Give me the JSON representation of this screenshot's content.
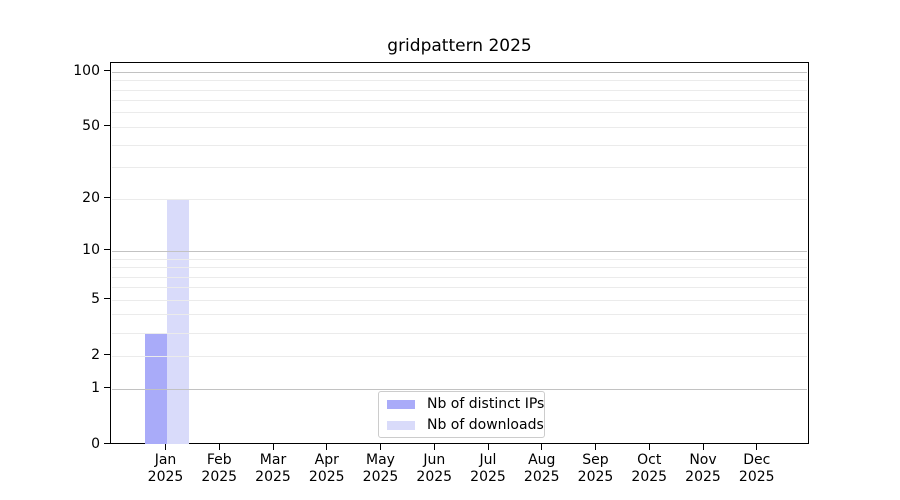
{
  "title": "gridpattern 2025",
  "chart_data": {
    "type": "bar",
    "title": "gridpattern 2025",
    "x_tick_labels": [
      {
        "month": "Jan",
        "year": "2025"
      },
      {
        "month": "Feb",
        "year": "2025"
      },
      {
        "month": "Mar",
        "year": "2025"
      },
      {
        "month": "Apr",
        "year": "2025"
      },
      {
        "month": "May",
        "year": "2025"
      },
      {
        "month": "Jun",
        "year": "2025"
      },
      {
        "month": "Jul",
        "year": "2025"
      },
      {
        "month": "Aug",
        "year": "2025"
      },
      {
        "month": "Sep",
        "year": "2025"
      },
      {
        "month": "Oct",
        "year": "2025"
      },
      {
        "month": "Nov",
        "year": "2025"
      },
      {
        "month": "Dec",
        "year": "2025"
      }
    ],
    "series": [
      {
        "name": "Nb of distinct IPs",
        "color": "#a9abf9",
        "values": [
          3,
          0,
          0,
          0,
          0,
          0,
          0,
          0,
          0,
          0,
          0,
          0
        ]
      },
      {
        "name": "Nb of downloads",
        "color": "#d9dbfa",
        "values": [
          20,
          0,
          0,
          0,
          0,
          0,
          0,
          0,
          0,
          0,
          0,
          0
        ]
      }
    ],
    "y_axis": {
      "scale": "log1p",
      "tick_values": [
        0,
        1,
        2,
        5,
        10,
        20,
        50,
        100
      ],
      "tick_labels": [
        "0",
        "1",
        "2",
        "5",
        "10",
        "20",
        "50",
        "100"
      ],
      "major_grid_values": [
        1,
        10,
        100
      ],
      "minor_grid_values": [
        2,
        3,
        4,
        5,
        6,
        7,
        8,
        9,
        20,
        30,
        40,
        50,
        60,
        70,
        80,
        90
      ],
      "ylim": [
        0,
        112
      ]
    },
    "legend": {
      "position": "bottom-center",
      "items": [
        "Nb of distinct IPs",
        "Nb of downloads"
      ]
    },
    "grid": true
  },
  "colors": {
    "background": "#ffffff",
    "spine": "#000000",
    "major_grid": "#c2c2c2",
    "minor_grid": "#ebebeb",
    "distinct_ips_bar": "#a9abf9",
    "downloads_bar": "#d9dbfa",
    "legend_border": "#cccccc"
  }
}
